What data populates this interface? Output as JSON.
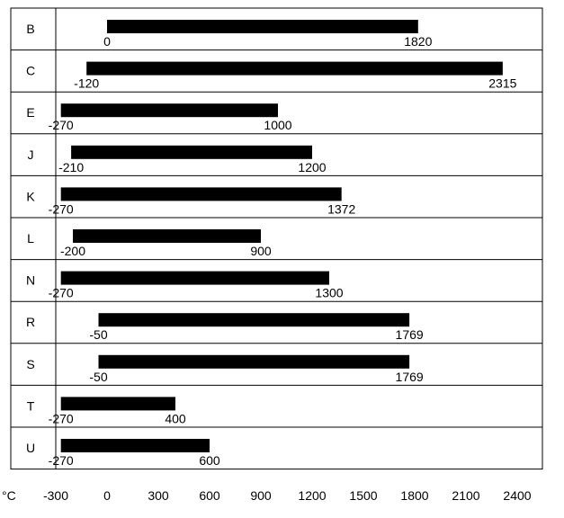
{
  "chart_data": {
    "type": "bar",
    "orientation": "horizontal",
    "subtype": "range",
    "title": "",
    "xlabel": "",
    "ylabel": "",
    "unit_label": "°C",
    "xlim": [
      -300,
      2600
    ],
    "xticks": [
      -300,
      0,
      300,
      600,
      900,
      1200,
      1500,
      1800,
      2100,
      2400
    ],
    "grid": "horizontal row separators",
    "legend": "none",
    "bar_color": "#000000",
    "categories": [
      "B",
      "C",
      "E",
      "J",
      "K",
      "L",
      "N",
      "R",
      "S",
      "T",
      "U"
    ],
    "ranges": [
      {
        "category": "B",
        "min": 0,
        "max": 1820,
        "min_label": "0",
        "max_label": "1820"
      },
      {
        "category": "C",
        "min": -120,
        "max": 2315,
        "min_label": "-120",
        "max_label": "2315"
      },
      {
        "category": "E",
        "min": -270,
        "max": 1000,
        "min_label": "-270",
        "max_label": "1000"
      },
      {
        "category": "J",
        "min": -210,
        "max": 1200,
        "min_label": "-210",
        "max_label": "1200"
      },
      {
        "category": "K",
        "min": -270,
        "max": 1372,
        "min_label": "-270",
        "max_label": "1372"
      },
      {
        "category": "L",
        "min": -200,
        "max": 900,
        "min_label": "-200",
        "max_label": "900"
      },
      {
        "category": "N",
        "min": -270,
        "max": 1300,
        "min_label": "-270",
        "max_label": "1300"
      },
      {
        "category": "R",
        "min": -50,
        "max": 1769,
        "min_label": "-50",
        "max_label": "1769"
      },
      {
        "category": "S",
        "min": -50,
        "max": 1769,
        "min_label": "-50",
        "max_label": "1769"
      },
      {
        "category": "T",
        "min": -270,
        "max": 400,
        "min_label": "-270",
        "max_label": "400"
      },
      {
        "category": "U",
        "min": -270,
        "max": 600,
        "min_label": "-270",
        "max_label": "600"
      }
    ]
  }
}
